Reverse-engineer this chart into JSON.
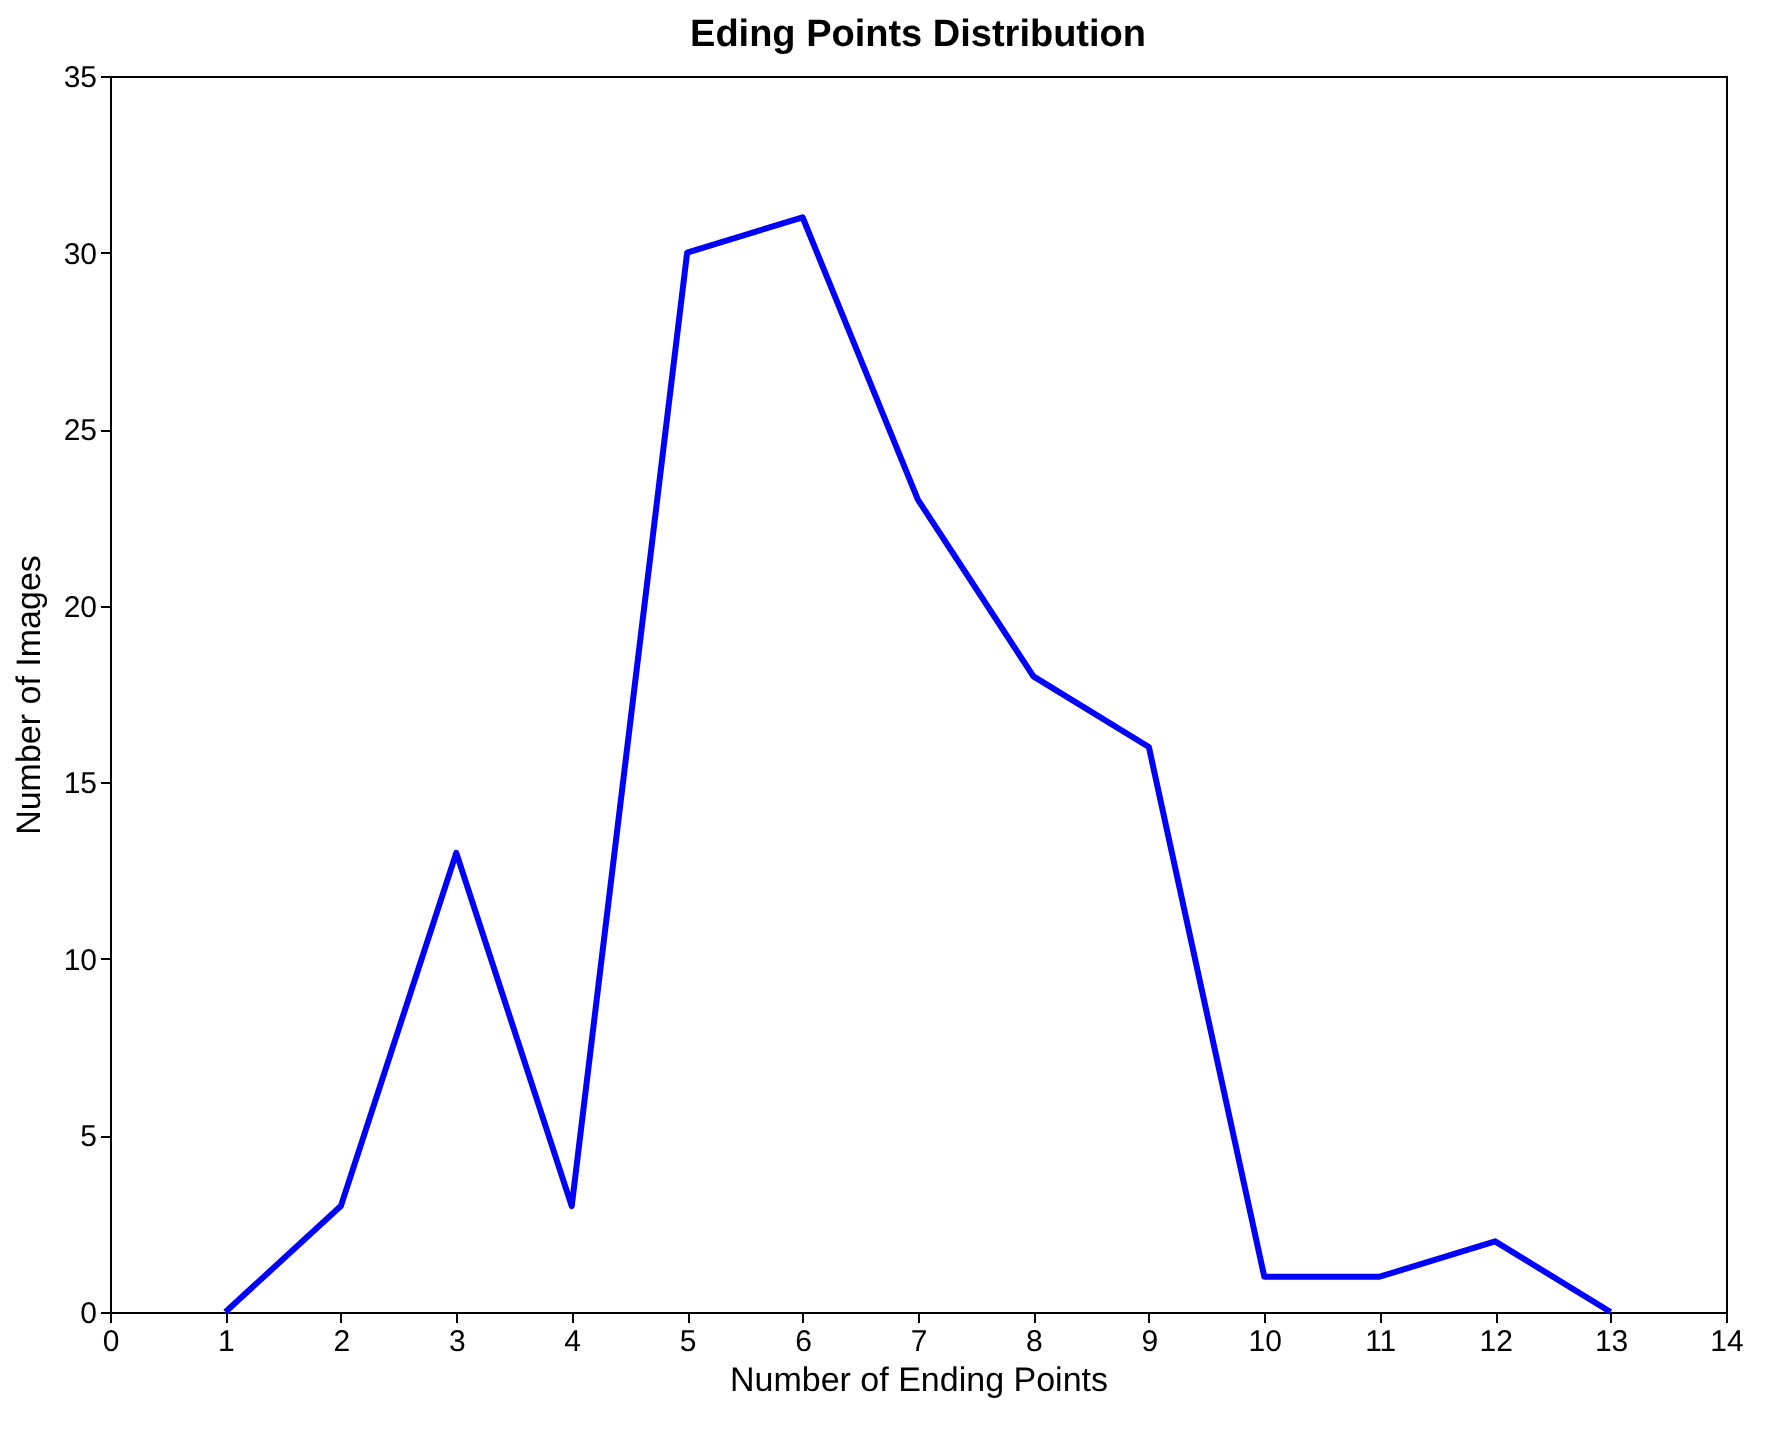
{
  "chart_data": {
    "type": "line",
    "title": "Eding Points Distribution",
    "xlabel": "Number of Ending Points",
    "ylabel": "Number of Images",
    "x": [
      1,
      2,
      3,
      4,
      5,
      6,
      7,
      8,
      9,
      10,
      11,
      12,
      13
    ],
    "series": [
      {
        "color": "#0000ff",
        "values": [
          0,
          3,
          13,
          3,
          30,
          31,
          23,
          18,
          16,
          1,
          1,
          2,
          0
        ]
      }
    ],
    "xlim": [
      0,
      14
    ],
    "xticks": [
      0,
      1,
      2,
      3,
      4,
      5,
      6,
      7,
      8,
      9,
      10,
      11,
      12,
      13,
      14
    ],
    "ylim": [
      0,
      35
    ],
    "yticks": [
      0,
      5,
      10,
      15,
      20,
      25,
      30,
      35
    ],
    "grid": false,
    "legend": false,
    "marker": "none",
    "line_style": "solid"
  }
}
